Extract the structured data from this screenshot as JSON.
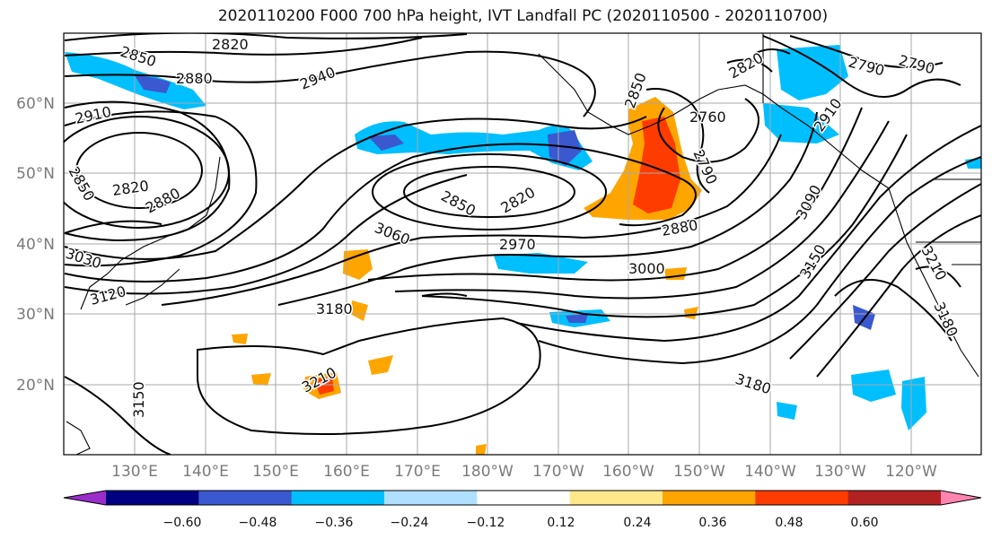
{
  "title": "2020110200 F000 700 hPa height, IVT Landfall PC (2020110500 - 2020110700)",
  "lat_labels": [
    "60°N",
    "50°N",
    "40°N",
    "30°N",
    "20°N"
  ],
  "lon_labels": [
    "130°E",
    "140°E",
    "150°E",
    "160°E",
    "170°E",
    "180°W",
    "170°W",
    "160°W",
    "150°W",
    "140°W",
    "130°W",
    "120°W"
  ],
  "colorbar": {
    "colors": [
      "#9a2ecb",
      "#000080",
      "#3a58cf",
      "#00bfff",
      "#b0e0ff",
      "#ffffff",
      "#ffe88a",
      "#ffa500",
      "#ff3c00",
      "#b22222",
      "#ff85b0"
    ],
    "tick_labels": [
      "−0.60",
      "−0.48",
      "−0.36",
      "−0.24",
      "−0.12",
      "0.12",
      "0.24",
      "0.36",
      "0.48",
      "0.60"
    ]
  },
  "contour_labels": [
    "2820",
    "2850",
    "2880",
    "2910",
    "2940",
    "2850",
    "2820",
    "2880",
    "2850",
    "2820",
    "3060",
    "2970",
    "3000",
    "2880",
    "2850",
    "2760",
    "2790",
    "2820",
    "2790",
    "2910",
    "3090",
    "3150",
    "3210",
    "3180",
    "3180",
    "3210",
    "3150",
    "3120",
    "3180",
    "2790",
    "3030"
  ]
}
